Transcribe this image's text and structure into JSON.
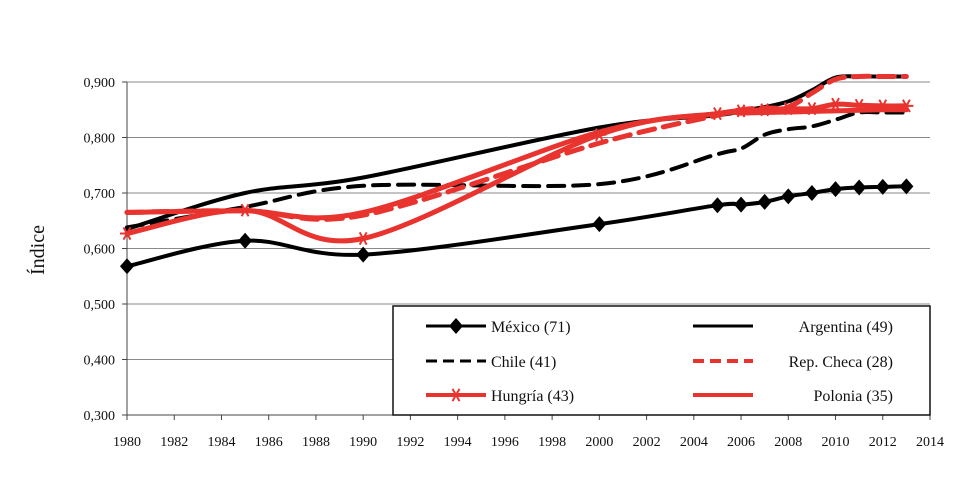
{
  "chart_data": {
    "type": "line",
    "title": "",
    "xlabel": "",
    "ylabel": "Índice",
    "xlim": [
      1980,
      2014
    ],
    "ylim": [
      0.3,
      0.9
    ],
    "x_ticks": [
      "1980",
      "1982",
      "1984",
      "1986",
      "1988",
      "1990",
      "1992",
      "1994",
      "1996",
      "1998",
      "2000",
      "2002",
      "2004",
      "2006",
      "2008",
      "2010",
      "2012",
      "2014"
    ],
    "y_ticks": [
      "0,300",
      "0,400",
      "0,500",
      "0,600",
      "0,700",
      "0,800",
      "0,900"
    ],
    "y_tick_values": [
      0.3,
      0.4,
      0.5,
      0.6,
      0.7,
      0.8,
      0.9
    ],
    "grid": "horizontal",
    "legend_position": "bottom-right",
    "series": [
      {
        "name": "México (71)",
        "color": "#000000",
        "dash": "solid",
        "marker": "diamond",
        "x": [
          1980,
          1985,
          1990,
          2000,
          2005,
          2006,
          2007,
          2008,
          2009,
          2010,
          2011,
          2012,
          2013
        ],
        "y": [
          0.568,
          0.614,
          0.589,
          0.644,
          0.678,
          0.679,
          0.684,
          0.694,
          0.7,
          0.707,
          0.71,
          0.711,
          0.712
        ]
      },
      {
        "name": "Argentina (49)",
        "color": "#000000",
        "dash": "solid",
        "marker": "none",
        "x": [
          1980,
          1985,
          1990,
          2000,
          2005,
          2006,
          2007,
          2008,
          2009,
          2010,
          2011,
          2012,
          2013
        ],
        "y": [
          0.635,
          0.7,
          0.728,
          0.818,
          0.84,
          0.848,
          0.855,
          0.865,
          0.885,
          0.908,
          0.91,
          0.91,
          0.91
        ]
      },
      {
        "name": "Chile (41)",
        "color": "#000000",
        "dash": "dashed",
        "marker": "none",
        "x": [
          1980,
          1985,
          1990,
          2000,
          2005,
          2006,
          2007,
          2008,
          2009,
          2010,
          2011,
          2012,
          2013
        ],
        "y": [
          0.638,
          0.675,
          0.713,
          0.716,
          0.77,
          0.78,
          0.805,
          0.815,
          0.82,
          0.832,
          0.845,
          0.845,
          0.845
        ]
      },
      {
        "name": "Rep. Checa (28)",
        "color": "#e8332e",
        "dash": "dashed",
        "marker": "none",
        "x": [
          1980,
          1985,
          1990,
          2000,
          2005,
          2006,
          2007,
          2008,
          2009,
          2010,
          2011,
          2012,
          2013
        ],
        "y": [
          0.665,
          0.668,
          0.66,
          0.79,
          0.84,
          0.85,
          0.853,
          0.855,
          0.88,
          0.905,
          0.91,
          0.91,
          0.91
        ]
      },
      {
        "name": "Hungría (43)",
        "color": "#e8332e",
        "dash": "solid",
        "marker": "asterisk",
        "x": [
          1980,
          1985,
          1990,
          2000,
          2005,
          2006,
          2007,
          2008,
          2009,
          2010,
          2011,
          2012,
          2013
        ],
        "y": [
          0.627,
          0.669,
          0.618,
          0.805,
          0.843,
          0.848,
          0.85,
          0.852,
          0.852,
          0.86,
          0.858,
          0.857,
          0.857
        ]
      },
      {
        "name": "Polonia (35)",
        "color": "#e8332e",
        "dash": "solid",
        "marker": "none",
        "x": [
          1980,
          1985,
          1990,
          2000,
          2005,
          2006,
          2007,
          2008,
          2009,
          2010,
          2011,
          2012,
          2013
        ],
        "y": [
          0.665,
          0.668,
          0.665,
          0.81,
          0.843,
          0.844,
          0.845,
          0.846,
          0.847,
          0.848,
          0.849,
          0.85,
          0.85
        ]
      }
    ]
  }
}
